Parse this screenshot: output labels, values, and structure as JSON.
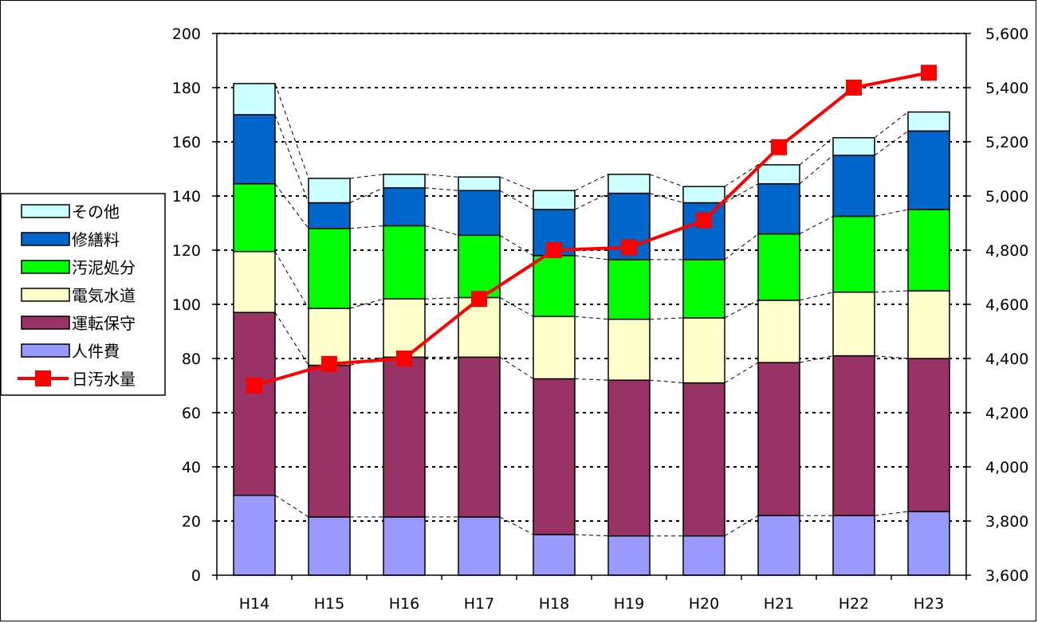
{
  "chart_data": {
    "type": "bar",
    "stacked": true,
    "categories": [
      "H14",
      "H15",
      "H16",
      "H17",
      "H18",
      "H19",
      "H20",
      "H21",
      "H22",
      "H23"
    ],
    "series": [
      {
        "name": "人件費",
        "color": "#9999ff",
        "values": [
          29.5,
          21.5,
          21.5,
          21.5,
          15,
          14.5,
          14.5,
          22,
          22,
          23.5
        ]
      },
      {
        "name": "運転保守",
        "color": "#993366",
        "values": [
          67.5,
          56,
          59,
          59,
          57.5,
          57.5,
          56.5,
          56.5,
          59,
          56.5
        ]
      },
      {
        "name": "電気水道",
        "color": "#ffffcc",
        "values": [
          22.5,
          21,
          21.5,
          22,
          23,
          22.5,
          24,
          23,
          23.5,
          25
        ]
      },
      {
        "name": "汚泥処分",
        "color": "#00ff00",
        "values": [
          25,
          29.5,
          27,
          23,
          22.5,
          22,
          21.5,
          24.5,
          28,
          30
        ]
      },
      {
        "name": "修繕料",
        "color": "#0066cc",
        "values": [
          25.5,
          9.5,
          14,
          16.5,
          17,
          24.5,
          21,
          18.5,
          22.5,
          29
        ]
      },
      {
        "name": "その他",
        "color": "#ccffff",
        "values": [
          11.5,
          9,
          5,
          5,
          7,
          7,
          6,
          7,
          6.5,
          7
        ]
      }
    ],
    "line_series": {
      "name": "日汚水量",
      "color": "#ff0000",
      "axis": "right",
      "values": [
        4300,
        4380,
        4400,
        4620,
        4800,
        4810,
        4910,
        5180,
        5400,
        5455
      ]
    },
    "y_left": {
      "min": 0,
      "max": 200,
      "ticks": [
        "0",
        "20",
        "40",
        "60",
        "80",
        "100",
        "120",
        "140",
        "160",
        "180",
        "200"
      ]
    },
    "y_right": {
      "min": 3600,
      "max": 5600,
      "ticks": [
        "3,600",
        "3,800",
        "4,000",
        "4,200",
        "4,400",
        "4,600",
        "4,800",
        "5,000",
        "5,200",
        "5,400",
        "5,600"
      ]
    },
    "legend": {
      "position": "left",
      "order": [
        "その他",
        "修繕料",
        "汚泥処分",
        "電気水道",
        "運転保守",
        "人件費",
        "日汚水量"
      ]
    },
    "grid": true,
    "series_lines": true
  }
}
